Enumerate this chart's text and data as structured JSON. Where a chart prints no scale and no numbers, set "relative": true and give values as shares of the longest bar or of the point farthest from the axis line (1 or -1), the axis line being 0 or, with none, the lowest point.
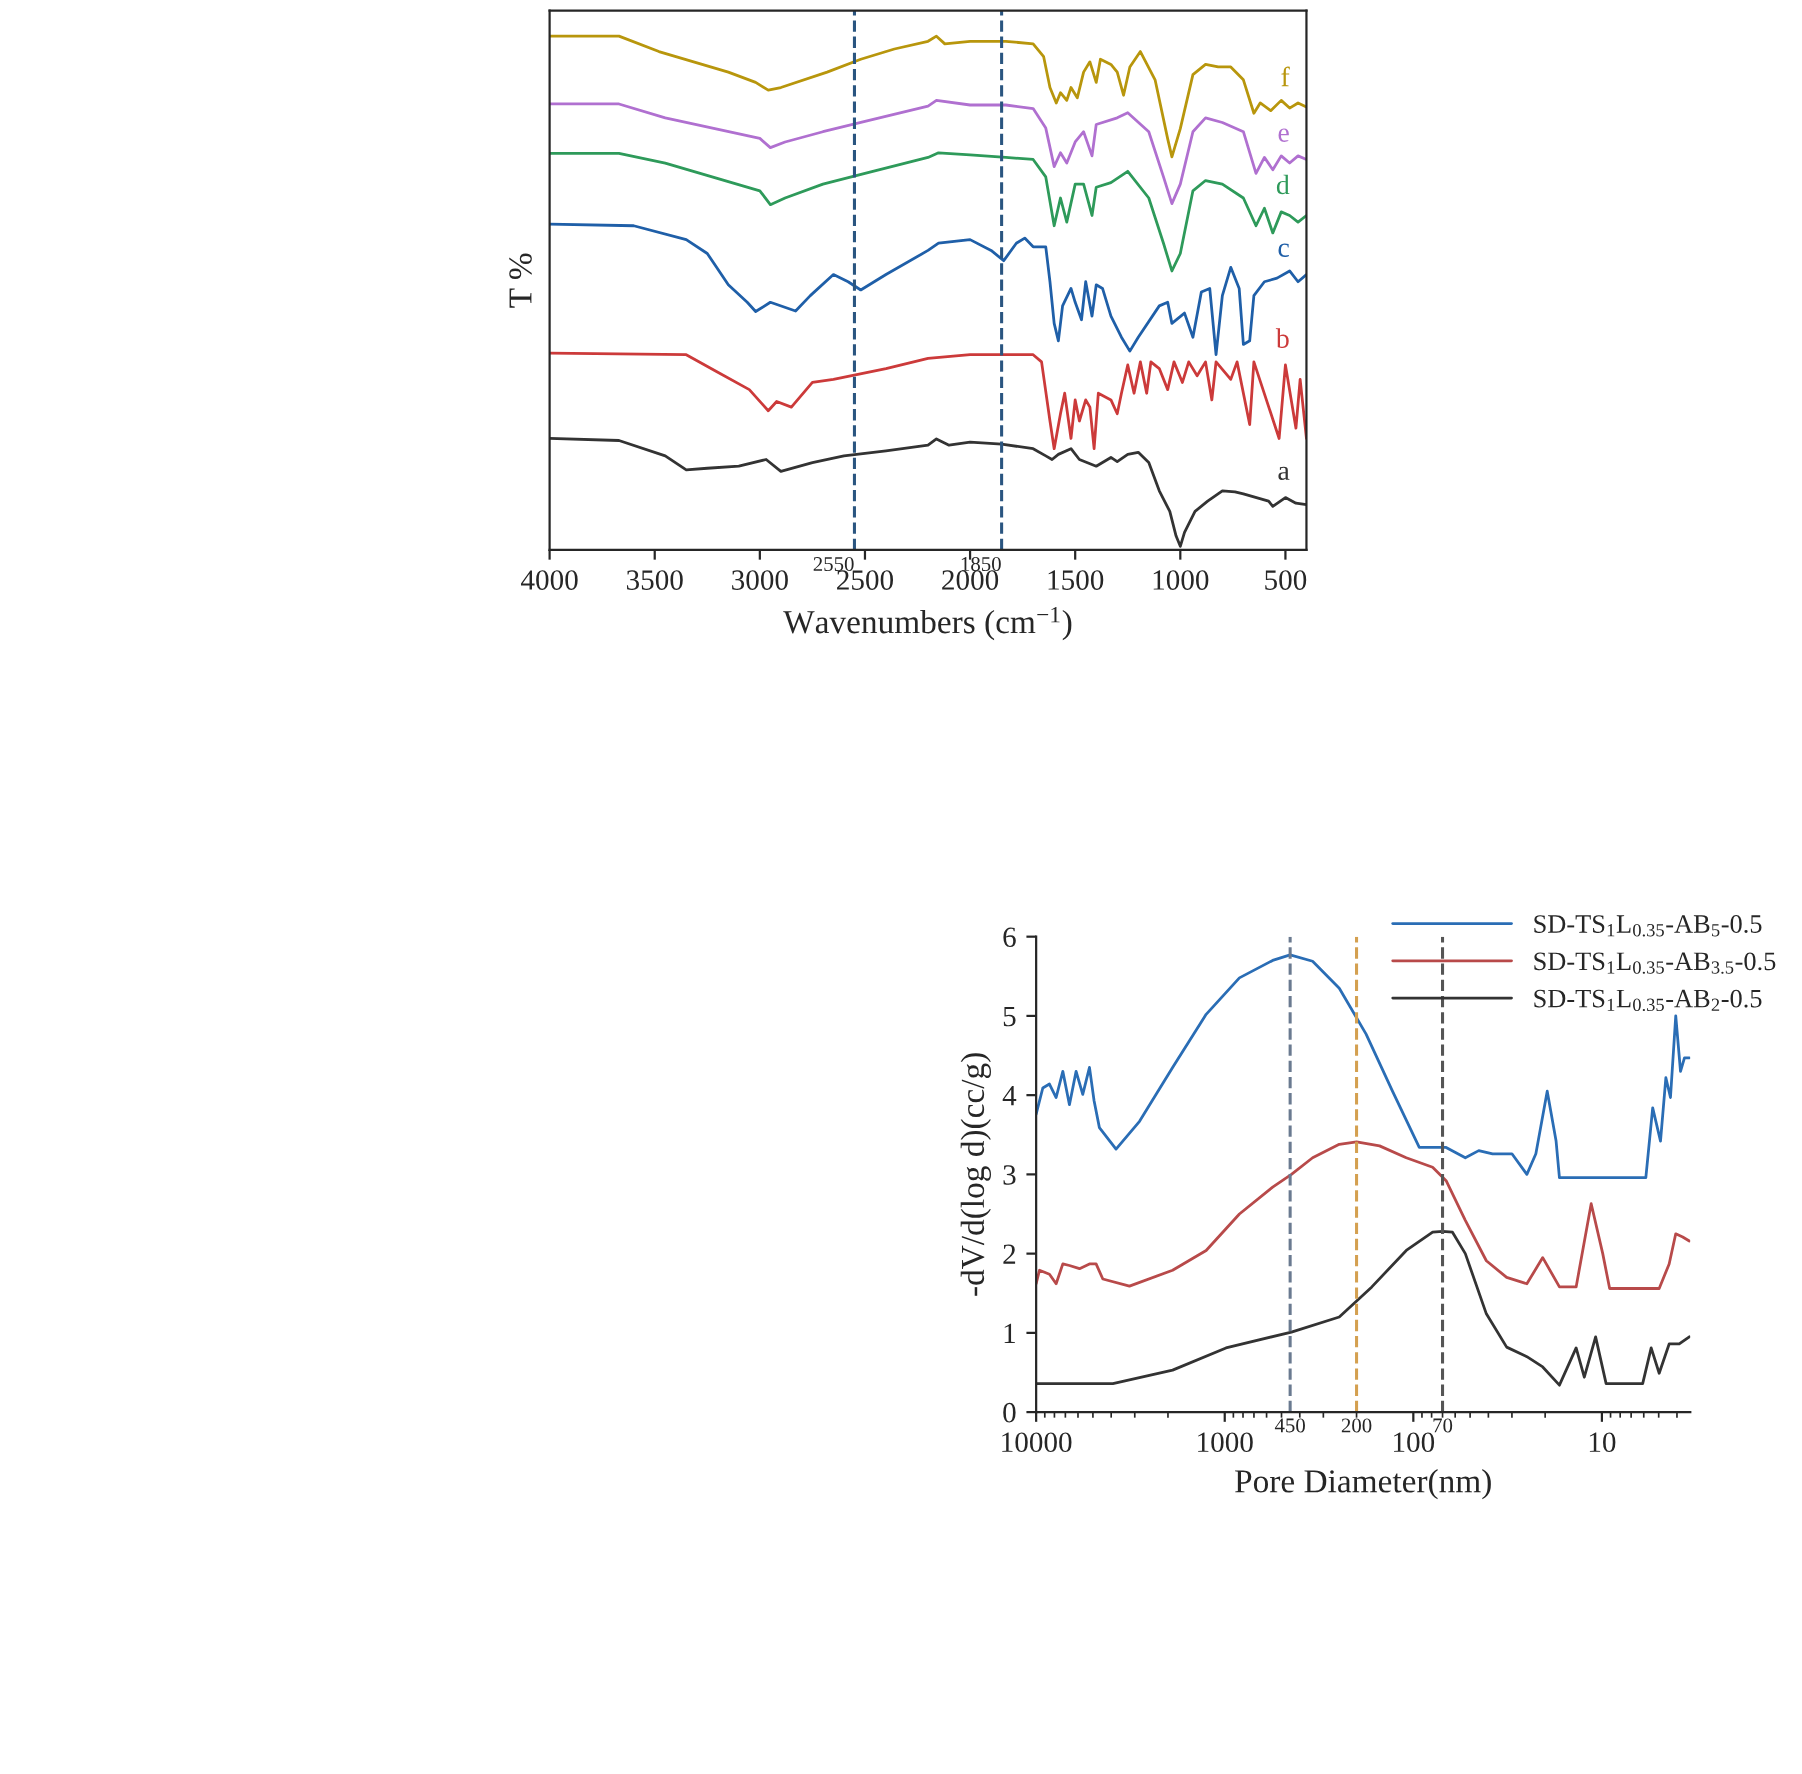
{
  "chart_data": [
    {
      "type": "line",
      "relative": true,
      "xlabel": "Wavenumbers (cm$^{−1}$)",
      "ylabel": "T %",
      "xlim": [
        4000,
        400
      ],
      "xticks": [
        4000,
        3500,
        3000,
        2500,
        2000,
        1500,
        1000,
        500
      ],
      "legend": false,
      "ref_lines": [
        {
          "axis": "x",
          "value": 2550,
          "label": "2550",
          "color": "#2a5580",
          "line_style": "dashed"
        },
        {
          "axis": "x",
          "value": 1850,
          "label": "1850",
          "color": "#2a5580",
          "line_style": "dashed"
        }
      ],
      "series": [
        {
          "name": "a",
          "color": "#333333",
          "x": [
            4000,
            3670,
            3450,
            3350,
            3250,
            3100,
            2970,
            2900,
            2750,
            2600,
            2400,
            2200,
            2160,
            2100,
            2000,
            1850,
            1700,
            1640,
            1610,
            1580,
            1520,
            1480,
            1400,
            1330,
            1300,
            1250,
            1200,
            1150,
            1100,
            1050,
            1020,
            1000,
            980,
            930,
            870,
            800,
            740,
            700,
            580,
            560,
            500,
            450,
            400
          ],
          "values": [
            0.217,
            0.213,
            0.183,
            0.156,
            0.159,
            0.163,
            0.176,
            0.153,
            0.17,
            0.183,
            0.193,
            0.204,
            0.216,
            0.204,
            0.21,
            0.206,
            0.197,
            0.183,
            0.176,
            0.186,
            0.197,
            0.176,
            0.163,
            0.18,
            0.172,
            0.186,
            0.19,
            0.17,
            0.115,
            0.075,
            0.027,
            0.007,
            0.034,
            0.075,
            0.095,
            0.115,
            0.113,
            0.109,
            0.095,
            0.085,
            0.102,
            0.091,
            0.088
          ]
        },
        {
          "name": "b",
          "color": "#cc3a3a",
          "x": [
            4000,
            3350,
            3200,
            3050,
            2960,
            2920,
            2850,
            2750,
            2650,
            2400,
            2200,
            2000,
            1700,
            1660,
            1620,
            1600,
            1570,
            1550,
            1520,
            1500,
            1480,
            1450,
            1430,
            1410,
            1390,
            1330,
            1300,
            1280,
            1250,
            1220,
            1190,
            1160,
            1140,
            1100,
            1060,
            1030,
            990,
            960,
            920,
            880,
            850,
            830,
            760,
            730,
            670,
            650,
            530,
            500,
            450,
            430,
            400
          ],
          "values": [
            0.383,
            0.38,
            0.346,
            0.312,
            0.271,
            0.289,
            0.278,
            0.326,
            0.332,
            0.353,
            0.373,
            0.38,
            0.38,
            0.366,
            0.251,
            0.197,
            0.265,
            0.305,
            0.217,
            0.292,
            0.251,
            0.292,
            0.278,
            0.197,
            0.305,
            0.292,
            0.265,
            0.305,
            0.36,
            0.305,
            0.366,
            0.305,
            0.366,
            0.353,
            0.312,
            0.366,
            0.326,
            0.366,
            0.339,
            0.366,
            0.292,
            0.366,
            0.332,
            0.366,
            0.244,
            0.366,
            0.217,
            0.36,
            0.237,
            0.332,
            0.217
          ]
        },
        {
          "name": "c",
          "color": "#1f5fa8",
          "x": [
            4000,
            3600,
            3350,
            3250,
            3150,
            3060,
            3020,
            2950,
            2830,
            2760,
            2650,
            2580,
            2520,
            2400,
            2200,
            2150,
            2000,
            1900,
            1840,
            1780,
            1740,
            1700,
            1640,
            1620,
            1600,
            1580,
            1560,
            1520,
            1500,
            1470,
            1450,
            1420,
            1400,
            1370,
            1330,
            1280,
            1240,
            1200,
            1100,
            1060,
            1040,
            980,
            940,
            900,
            860,
            830,
            800,
            760,
            720,
            700,
            670,
            650,
            600,
            540,
            480,
            440,
            400
          ],
          "values": [
            0.634,
            0.631,
            0.604,
            0.577,
            0.516,
            0.482,
            0.464,
            0.482,
            0.465,
            0.495,
            0.536,
            0.522,
            0.506,
            0.536,
            0.583,
            0.597,
            0.604,
            0.583,
            0.563,
            0.597,
            0.607,
            0.59,
            0.59,
            0.522,
            0.441,
            0.407,
            0.475,
            0.509,
            0.482,
            0.448,
            0.522,
            0.455,
            0.516,
            0.509,
            0.455,
            0.414,
            0.387,
            0.414,
            0.475,
            0.482,
            0.441,
            0.461,
            0.414,
            0.502,
            0.509,
            0.38,
            0.495,
            0.55,
            0.509,
            0.4,
            0.407,
            0.495,
            0.522,
            0.529,
            0.543,
            0.522,
            0.536
          ]
        },
        {
          "name": "d",
          "color": "#2e9a5a",
          "x": [
            4000,
            3670,
            3450,
            3000,
            2950,
            2880,
            2700,
            2500,
            2200,
            2150,
            2000,
            1830,
            1700,
            1640,
            1600,
            1570,
            1540,
            1500,
            1460,
            1420,
            1400,
            1330,
            1250,
            1150,
            1080,
            1040,
            1000,
            940,
            880,
            800,
            700,
            640,
            600,
            560,
            520,
            480,
            440,
            400
          ],
          "values": [
            0.772,
            0.772,
            0.753,
            0.699,
            0.672,
            0.685,
            0.712,
            0.733,
            0.764,
            0.773,
            0.769,
            0.764,
            0.76,
            0.726,
            0.631,
            0.685,
            0.638,
            0.712,
            0.712,
            0.651,
            0.706,
            0.715,
            0.737,
            0.685,
            0.597,
            0.543,
            0.577,
            0.699,
            0.719,
            0.712,
            0.685,
            0.631,
            0.665,
            0.617,
            0.658,
            0.651,
            0.638,
            0.651
          ]
        },
        {
          "name": "e",
          "color": "#b070d0",
          "x": [
            4000,
            3670,
            3450,
            3000,
            2950,
            2880,
            2700,
            2500,
            2200,
            2160,
            2000,
            1830,
            1700,
            1640,
            1600,
            1570,
            1540,
            1500,
            1460,
            1420,
            1400,
            1300,
            1250,
            1150,
            1080,
            1040,
            1000,
            940,
            880,
            800,
            700,
            640,
            600,
            560,
            520,
            480,
            440,
            400
          ],
          "values": [
            0.868,
            0.868,
            0.841,
            0.801,
            0.783,
            0.794,
            0.814,
            0.834,
            0.864,
            0.875,
            0.866,
            0.866,
            0.859,
            0.821,
            0.746,
            0.773,
            0.753,
            0.794,
            0.814,
            0.767,
            0.828,
            0.841,
            0.851,
            0.814,
            0.726,
            0.674,
            0.712,
            0.814,
            0.841,
            0.832,
            0.814,
            0.733,
            0.764,
            0.74,
            0.767,
            0.753,
            0.767,
            0.76
          ]
        },
        {
          "name": "f",
          "color": "#b8960c",
          "x": [
            4000,
            3670,
            3480,
            3150,
            3020,
            2960,
            2900,
            2680,
            2520,
            2360,
            2200,
            2160,
            2120,
            2000,
            1830,
            1700,
            1650,
            1620,
            1590,
            1570,
            1540,
            1520,
            1490,
            1460,
            1430,
            1400,
            1380,
            1330,
            1300,
            1270,
            1240,
            1190,
            1120,
            1060,
            1040,
            1000,
            940,
            880,
            820,
            760,
            700,
            650,
            620,
            570,
            520,
            480,
            440,
            400
          ],
          "values": [
            1.0,
            1.0,
            0.97,
            0.93,
            0.91,
            0.895,
            0.9,
            0.93,
            0.955,
            0.975,
            0.99,
            1.0,
            0.985,
            0.99,
            0.99,
            0.985,
            0.96,
            0.9,
            0.87,
            0.89,
            0.875,
            0.9,
            0.88,
            0.93,
            0.95,
            0.91,
            0.955,
            0.945,
            0.93,
            0.885,
            0.94,
            0.97,
            0.915,
            0.8,
            0.765,
            0.82,
            0.925,
            0.945,
            0.94,
            0.94,
            0.915,
            0.85,
            0.87,
            0.855,
            0.875,
            0.86,
            0.87,
            0.862
          ]
        }
      ]
    },
    {
      "type": "line",
      "log": "x",
      "xlabel": "Pore Diameter(nm)",
      "ylabel": "-dV/d(log d)(cc/g)",
      "xlim": [
        10000,
        3.4
      ],
      "xticks": [
        10000,
        1000,
        100,
        10
      ],
      "ylim": [
        0,
        6
      ],
      "yticks": [
        0,
        1,
        2,
        3,
        4,
        5,
        6
      ],
      "legend": "top right",
      "ref_lines": [
        {
          "axis": "x",
          "value": 450,
          "label": "450",
          "color": "#6a7a90",
          "line_style": "dashed"
        },
        {
          "axis": "x",
          "value": 200,
          "label": "200",
          "color": "#d4a050",
          "line_style": "dashed"
        },
        {
          "axis": "x",
          "value": 70,
          "label": "70",
          "color": "#555555",
          "line_style": "dashed"
        }
      ],
      "series": [
        {
          "name": "SD-TS$_{1}$L$_{0.35}$-AB$_{5}$-0.5",
          "color": "#2a6db5",
          "x": [
            10000,
            9220,
            8500,
            7835,
            7220,
            6660,
            6140,
            5660,
            5215,
            4930,
            4620,
            3770,
            2830,
            1890,
            1255,
            836,
            557,
            450,
            342,
            247,
            178,
            129,
            93,
            79,
            67,
            53,
            45,
            38,
            30,
            25,
            22.4,
            19.5,
            17.5,
            16.8,
            5.85,
            5.38,
            4.89,
            4.58,
            4.33,
            4.06,
            3.83,
            3.65,
            3.44
          ],
          "values": [
            3.76,
            4.09,
            4.14,
            3.97,
            4.3,
            3.88,
            4.3,
            4.01,
            4.35,
            3.93,
            3.59,
            3.32,
            3.67,
            4.35,
            5.02,
            5.48,
            5.7,
            5.77,
            5.69,
            5.35,
            4.77,
            4.05,
            3.34,
            3.34,
            3.34,
            3.21,
            3.3,
            3.26,
            3.26,
            3.0,
            3.26,
            4.05,
            3.42,
            2.96,
            2.96,
            3.84,
            3.42,
            4.22,
            3.97,
            5.0,
            4.3,
            4.47,
            4.47
          ]
        },
        {
          "name": "SD-TS$_{1}$L$_{0.35}$-AB$_{3.5}$-0.5",
          "color": "#b84a4a",
          "x": [
            10000,
            9600,
            8500,
            7835,
            7220,
            6660,
            5890,
            5215,
            4810,
            4430,
            3200,
            1890,
            1255,
            836,
            557,
            443,
            342,
            247,
            200,
            151,
            109,
            79,
            67,
            53,
            41,
            32,
            25,
            20.6,
            16.8,
            13.7,
            11.4,
            9.9,
            9.1,
            4.97,
            4.4,
            4.06,
            3.73,
            3.44
          ],
          "values": [
            1.62,
            1.79,
            1.74,
            1.62,
            1.87,
            1.85,
            1.81,
            1.87,
            1.87,
            1.68,
            1.59,
            1.79,
            2.04,
            2.5,
            2.84,
            3.0,
            3.21,
            3.38,
            3.41,
            3.36,
            3.21,
            3.09,
            2.92,
            2.42,
            1.91,
            1.7,
            1.62,
            1.95,
            1.58,
            1.58,
            2.63,
            2.0,
            1.56,
            1.56,
            1.87,
            2.25,
            2.21,
            2.16
          ]
        },
        {
          "name": "SD-TS$_{1}$L$_{0.35}$-AB$_{2}$-0.5",
          "color": "#333333",
          "x": [
            10000,
            3920,
            1890,
            985,
            443,
            247,
            166,
            109,
            79,
            70,
            62,
            53,
            41,
            32,
            25,
            20.6,
            16.8,
            13.7,
            12.4,
            10.8,
            9.5,
            6.08,
            5.48,
            4.97,
            4.4,
            3.89,
            3.44
          ],
          "values": [
            0.36,
            0.36,
            0.53,
            0.81,
            1.01,
            1.2,
            1.58,
            2.04,
            2.27,
            2.28,
            2.27,
            2.0,
            1.24,
            0.82,
            0.7,
            0.57,
            0.34,
            0.81,
            0.44,
            0.95,
            0.36,
            0.36,
            0.81,
            0.49,
            0.86,
            0.86,
            0.95
          ]
        }
      ]
    }
  ]
}
